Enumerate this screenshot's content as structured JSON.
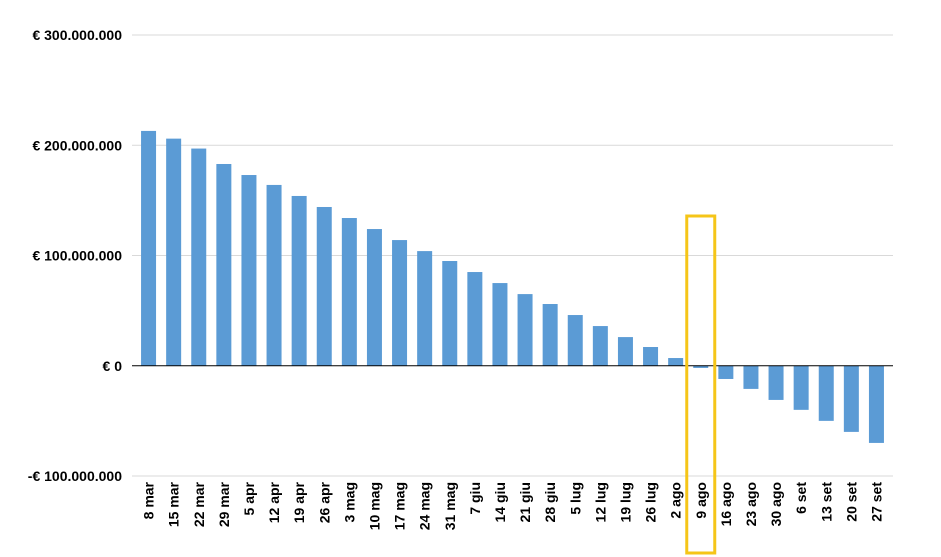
{
  "chart_data": {
    "type": "bar",
    "title": "",
    "xlabel": "",
    "ylabel": "",
    "ylim": [
      -100000000,
      300000000
    ],
    "grid": true,
    "categories": [
      "8 mar",
      "15 mar",
      "22 mar",
      "29 mar",
      "5 apr",
      "12 apr",
      "19 apr",
      "26 apr",
      "3 mag",
      "10 mag",
      "17 mag",
      "24 mag",
      "31 mag",
      "7 giu",
      "14 giu",
      "21 giu",
      "28 giu",
      "5 lug",
      "12 lug",
      "19 lug",
      "26 lug",
      "2 ago",
      "9 ago",
      "16 ago",
      "23 ago",
      "30 ago",
      "6 set",
      "13 set",
      "20 set",
      "27 set"
    ],
    "values": [
      213000000,
      206000000,
      197000000,
      183000000,
      173000000,
      164000000,
      154000000,
      144000000,
      134000000,
      124000000,
      114000000,
      104000000,
      95000000,
      85000000,
      75000000,
      65000000,
      56000000,
      46000000,
      36000000,
      26000000,
      17000000,
      7000000,
      -2000000,
      -12000000,
      -21000000,
      -31000000,
      -40000000,
      -50000000,
      -60000000,
      -70000000
    ],
    "ytick_labels": [
      "€ 300.000.000",
      "€ 200.000.000",
      "€ 100.000.000",
      "€ 0",
      "-€ 100.000.000"
    ],
    "ytick_values": [
      300000000,
      200000000,
      100000000,
      0,
      -100000000
    ],
    "bar_color": "#5B9BD5",
    "highlight": {
      "category": "9 ago",
      "color": "#F5C518"
    }
  }
}
